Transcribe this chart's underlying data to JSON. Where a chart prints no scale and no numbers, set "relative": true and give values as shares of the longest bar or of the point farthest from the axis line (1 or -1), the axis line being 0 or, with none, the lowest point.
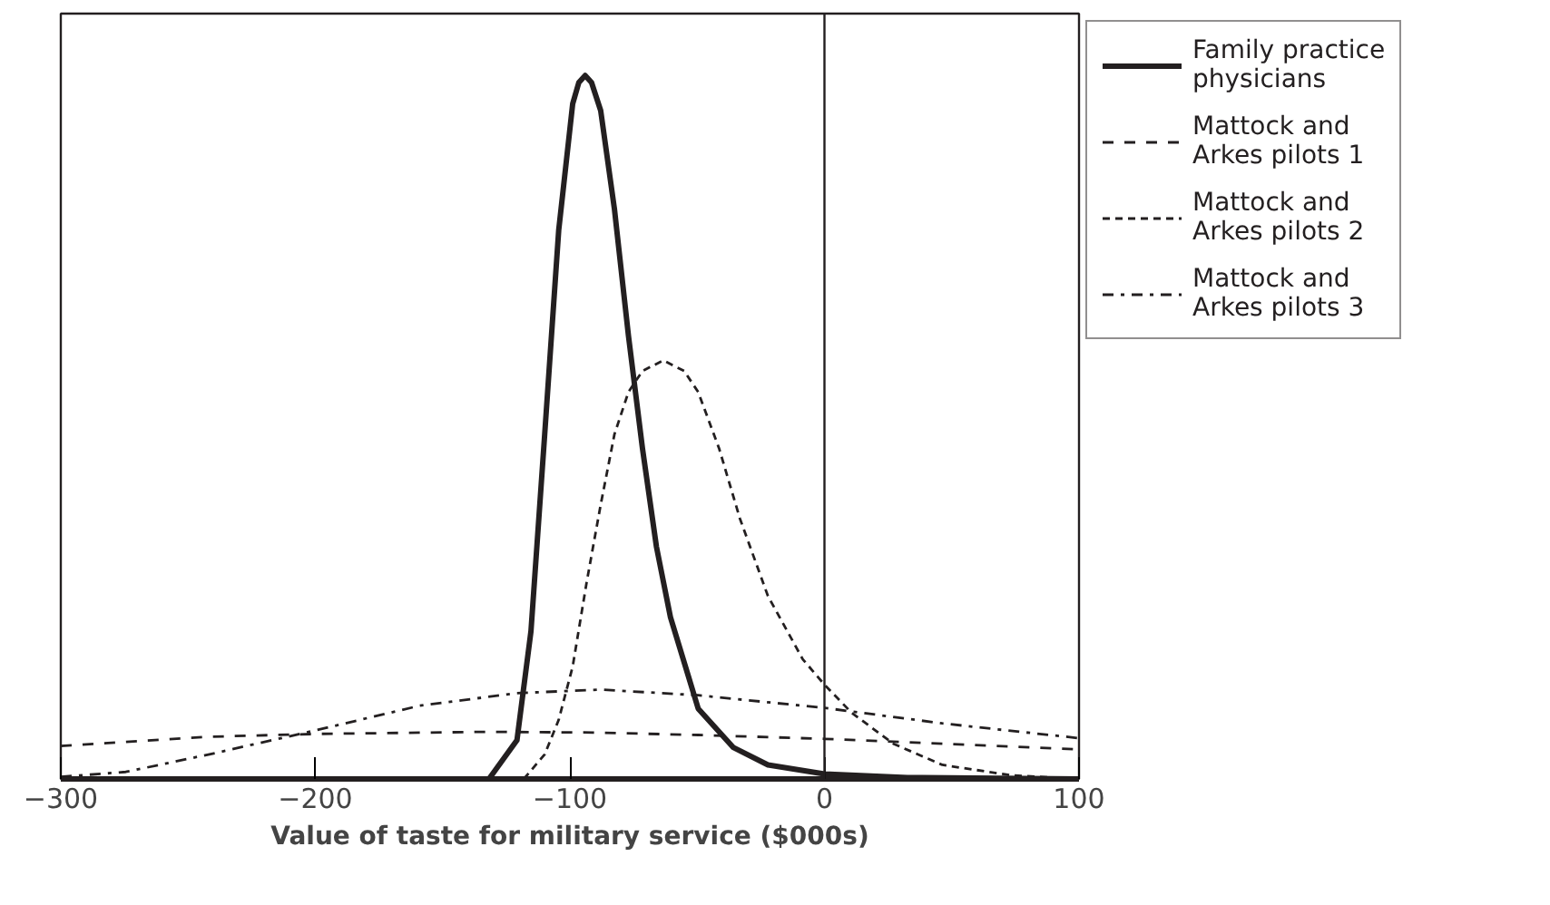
{
  "chart_data": {
    "type": "line",
    "relative": true,
    "xlabel": "Value of taste for military service ($000s)",
    "xlim": [
      -300,
      100
    ],
    "xticks": [
      -300,
      -200,
      -100,
      0,
      100
    ],
    "grid": false,
    "legend": "right",
    "marker": "none",
    "ref_lines": [
      {
        "axis": "x",
        "value": 0,
        "color": "#231f20"
      }
    ],
    "series": [
      {
        "name": "Family practice physicians",
        "color": "#231f20",
        "line_style": "solid",
        "x": [
          -300,
          -131.8,
          -120.8,
          -115.3,
          -109.9,
          -104.4,
          -98.9,
          -96.5,
          -94.0,
          -91.5,
          -87.9,
          -82.5,
          -77.0,
          -71.5,
          -66.0,
          -60.5,
          -49.6,
          -35.9,
          -22.2,
          0,
          32.6,
          100
        ],
        "values": [
          0,
          0,
          0.055,
          0.21,
          0.49,
          0.78,
          0.96,
          0.99,
          1.0,
          0.99,
          0.95,
          0.81,
          0.63,
          0.47,
          0.33,
          0.23,
          0.1,
          0.045,
          0.02,
          0.007,
          0.002,
          0
        ]
      },
      {
        "name": "Mattock and Arkes pilots 1",
        "color": "#231f20",
        "line_style": "dashed",
        "x": [
          -300,
          -241.6,
          -200,
          -132,
          -90.7,
          -49.6,
          0,
          46.3,
          100
        ],
        "values": [
          0.047,
          0.06,
          0.064,
          0.067,
          0.066,
          0.0625,
          0.057,
          0.05,
          0.042
        ]
      },
      {
        "name": "Mattock and Arkes pilots 2",
        "color": "#231f20",
        "line_style": "dotted",
        "x": [
          -118.1,
          -109.9,
          -104.4,
          -98.9,
          -93.4,
          -87.9,
          -82.5,
          -77.0,
          -71.5,
          -63.3,
          -55.1,
          -49.6,
          -41.4,
          -33.2,
          -22.2,
          -8.5,
          0,
          10.7,
          27.1,
          46.3,
          73.7,
          100
        ],
        "values": [
          0,
          0.035,
          0.084,
          0.16,
          0.28,
          0.39,
          0.49,
          0.55,
          0.58,
          0.595,
          0.58,
          0.55,
          0.47,
          0.37,
          0.26,
          0.17,
          0.134,
          0.094,
          0.05,
          0.02,
          0.005,
          0
        ]
      },
      {
        "name": "Mattock and Arkes pilots 3",
        "color": "#231f20",
        "line_style": "dashdot",
        "x": [
          -300,
          -274.5,
          -241.6,
          -200,
          -159.2,
          -120.8,
          -87.9,
          -49.6,
          0,
          46.3,
          100
        ],
        "values": [
          0.003,
          0.01,
          0.035,
          0.069,
          0.104,
          0.122,
          0.127,
          0.119,
          0.101,
          0.079,
          0.058
        ]
      }
    ]
  }
}
